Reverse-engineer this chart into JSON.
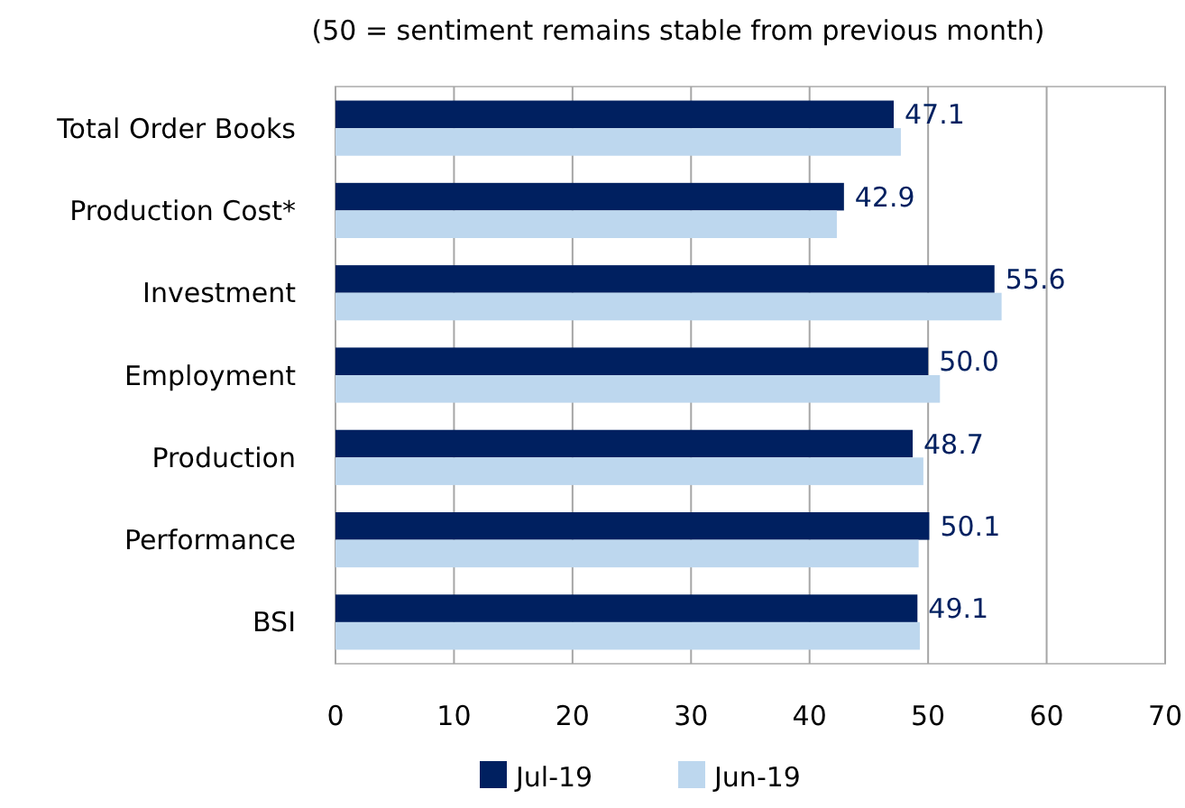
{
  "chart_data": {
    "type": "bar",
    "orientation": "horizontal",
    "title": "(50 = sentiment remains stable from previous month)",
    "categories": [
      "Total Order Books",
      "Production Cost*",
      "Investment",
      "Employment",
      "Production",
      "Performance",
      "BSI"
    ],
    "series": [
      {
        "name": "Jul-19",
        "color": "#002060",
        "values": [
          47.1,
          42.9,
          55.6,
          50.0,
          48.7,
          50.1,
          49.1
        ],
        "value_labels": [
          "47.1",
          "42.9",
          "55.6",
          "50.0",
          "48.7",
          "50.1",
          "49.1"
        ]
      },
      {
        "name": "Jun-19",
        "color": "#bdd7ee",
        "values": [
          47.7,
          42.3,
          56.2,
          51.0,
          49.6,
          49.2,
          49.3
        ]
      }
    ],
    "xlim": [
      0,
      70
    ],
    "xticks": [
      0,
      10,
      20,
      30,
      40,
      50,
      60,
      70
    ],
    "grid": "x",
    "legend": "bottom"
  }
}
